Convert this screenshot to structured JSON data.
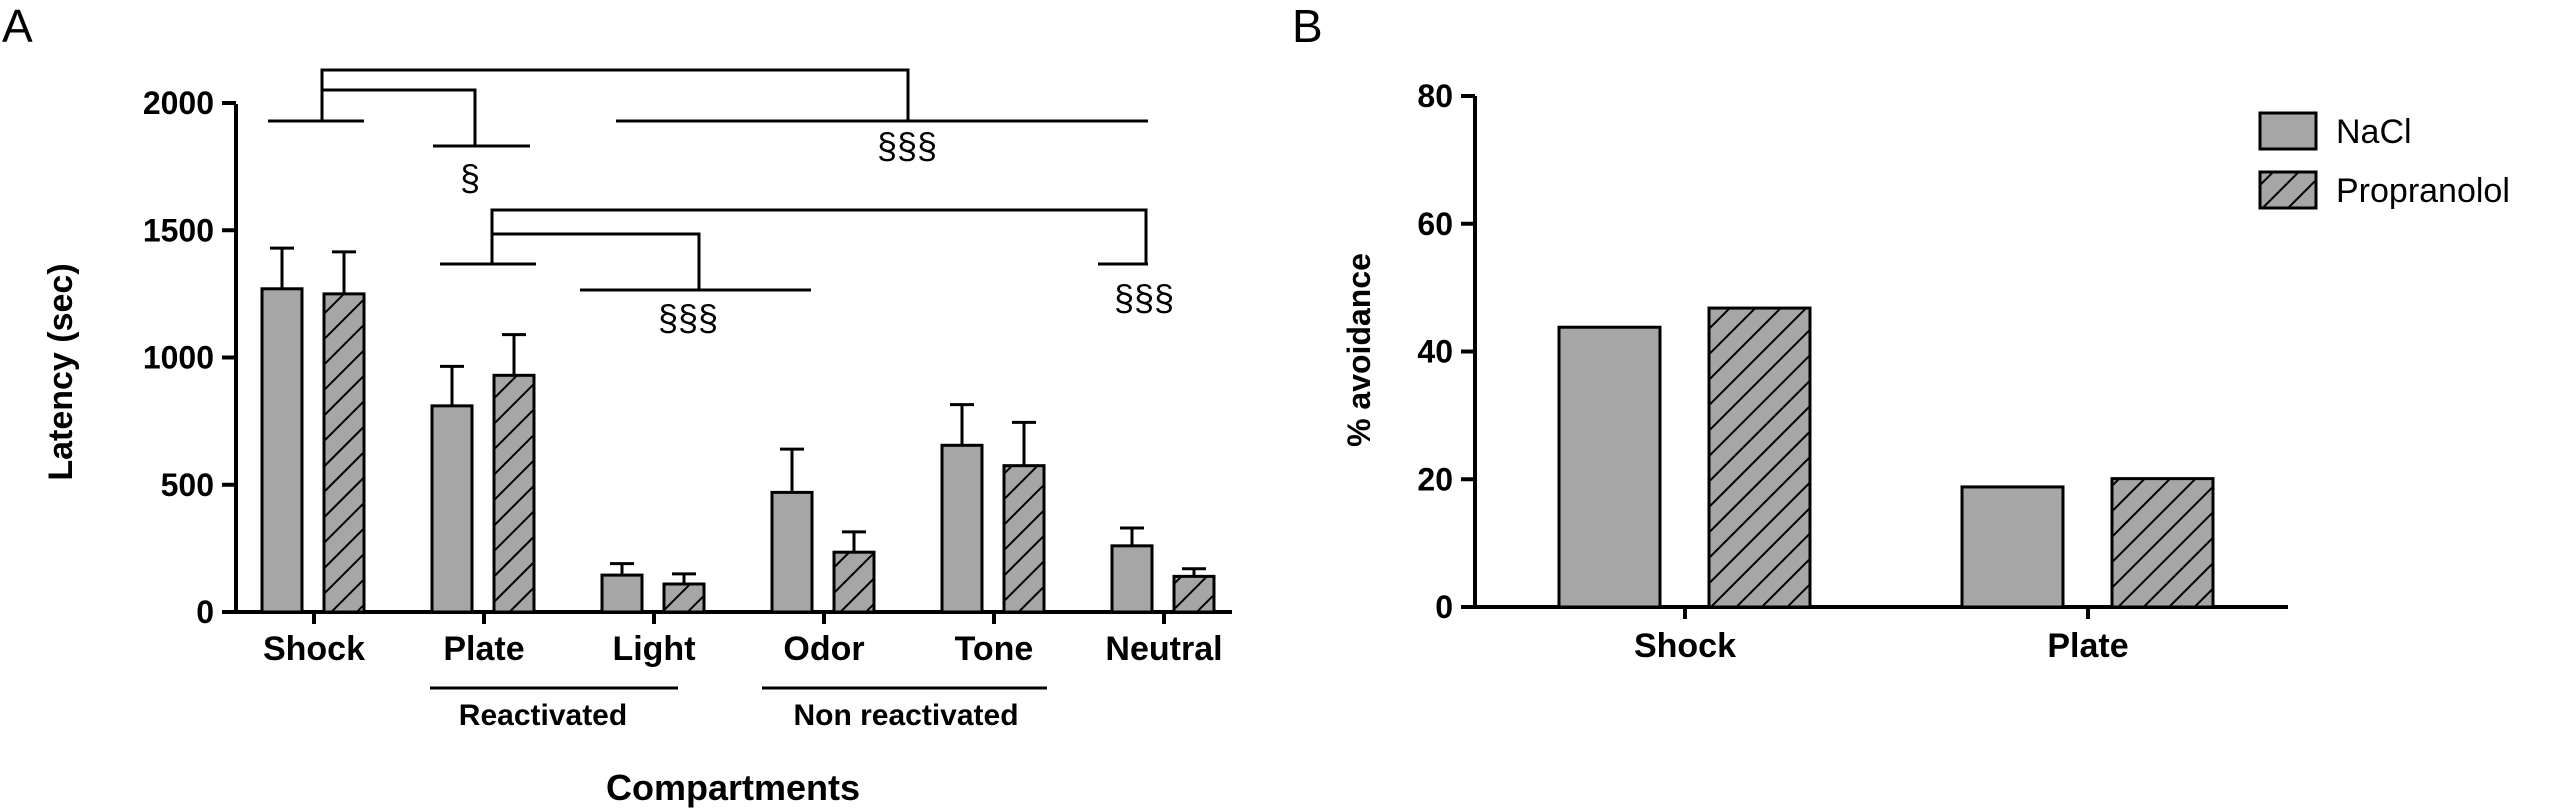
{
  "chart_data": [
    {
      "panel_label": "A",
      "type": "bar",
      "ylabel": "Latency (sec)",
      "xlabel": "Compartments",
      "ylim": [
        0,
        2000
      ],
      "yticks": [
        0,
        500,
        1000,
        1500,
        2000
      ],
      "categories": [
        "Shock",
        "Plate",
        "Light",
        "Odor",
        "Tone",
        "Neutral"
      ],
      "series": [
        {
          "pattern": "solid",
          "values": [
            1270,
            810,
            145,
            470,
            655,
            260
          ],
          "errors": [
            160,
            155,
            45,
            170,
            160,
            70
          ]
        },
        {
          "pattern": "hatch",
          "values": [
            1250,
            930,
            110,
            235,
            575,
            140
          ],
          "errors": [
            165,
            160,
            40,
            80,
            170,
            30
          ]
        }
      ],
      "groups": [
        {
          "label": "Reactivated",
          "categories": [
            "Plate",
            "Light"
          ]
        },
        {
          "label": "Non reactivated",
          "categories": [
            "Odor",
            "Tone"
          ]
        }
      ],
      "significance_marks": [
        "§",
        "§§§",
        "§§§",
        "§§§"
      ],
      "grid": false
    },
    {
      "panel_label": "B",
      "type": "bar",
      "ylabel": "% avoidance",
      "xlabel": "",
      "ylim": [
        0,
        80
      ],
      "yticks": [
        0,
        20,
        40,
        60,
        80
      ],
      "categories": [
        "Shock",
        "Plate"
      ],
      "series": [
        {
          "name": "NaCl",
          "pattern": "solid",
          "values": [
            43.8,
            18.8
          ]
        },
        {
          "name": "Propranolol",
          "pattern": "hatch",
          "values": [
            46.8,
            20.1
          ]
        }
      ],
      "legend": "top-right",
      "grid": false
    }
  ],
  "colors": {
    "bar_fill": "#a6a6a6",
    "stroke": "#000000",
    "background": "#ffffff"
  }
}
